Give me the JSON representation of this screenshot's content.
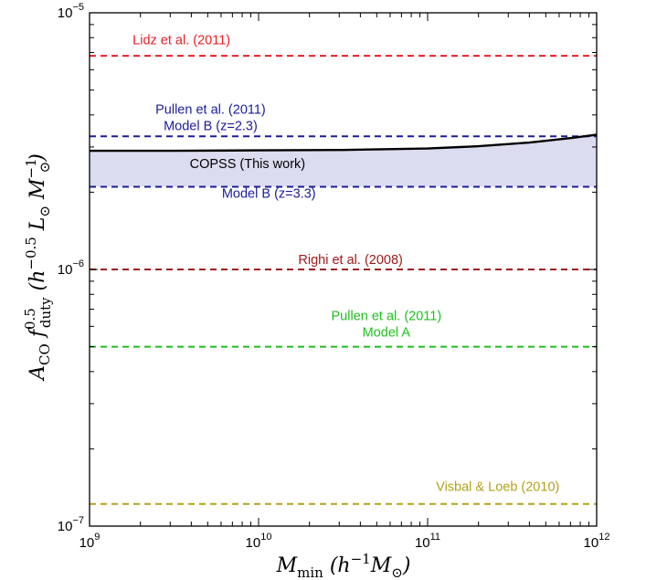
{
  "chart_data": {
    "type": "line",
    "x_scale": "log",
    "y_scale": "log",
    "xlim": [
      1000000000.0,
      1000000000000.0
    ],
    "ylim": [
      1e-07,
      1e-05
    ],
    "xlabel": {
      "main": "M",
      "sub": "min",
      "units": "(h",
      "units_exp": "−1",
      "units_rest": "M",
      "units_sub": "⊙",
      "units_close": ")"
    },
    "ylabel": {
      "main": "A",
      "sub1": "CO",
      "f": " f",
      "f_sup": "0.5",
      "f_sub": "duty",
      "units": "(h",
      "units_exp": "−0.5",
      "units_L": " L",
      "units_L_sub": "⊙",
      "units_M": " M",
      "units_M_sup": "−1",
      "units_M_sub": "⊙",
      "units_close": ")"
    },
    "x_ticks": [
      {
        "value": 1000000000.0,
        "base": "10",
        "exp": "9"
      },
      {
        "value": 10000000000.0,
        "base": "10",
        "exp": "10"
      },
      {
        "value": 100000000000.0,
        "base": "10",
        "exp": "11"
      },
      {
        "value": 1000000000000.0,
        "base": "10",
        "exp": "12"
      }
    ],
    "y_ticks": [
      {
        "value": 1e-07,
        "base": "10",
        "exp": "−7"
      },
      {
        "value": 1e-06,
        "base": "10",
        "exp": "−6"
      },
      {
        "value": 1e-05,
        "base": "10",
        "exp": "−5"
      }
    ],
    "hlines": [
      {
        "name": "Lidz et al. (2011)",
        "y": 6.8e-06,
        "color": "#ee1c24"
      },
      {
        "name": "Pullen et al. (2011) Model B (z=2.3)",
        "y": 3.3e-06,
        "color": "#1c1c9c"
      },
      {
        "name": "Model B (z=3.3)",
        "y": 2.1e-06,
        "color": "#1c1c9c"
      },
      {
        "name": "Righi et al. (2008)",
        "y": 1e-06,
        "color": "#a01a1a"
      },
      {
        "name": "Pullen et al. (2011) Model A",
        "y": 5e-07,
        "color": "#1fbf1f"
      },
      {
        "name": "Visbal & Loeb (2010)",
        "y": 1.22e-07,
        "color": "#b3a21a"
      }
    ],
    "copss_curve": {
      "name": "COPSS (This work)",
      "color": "#000000",
      "x": [
        1000000000.0,
        3160000000.0,
        10000000000.0,
        31600000000.0,
        100000000000.0,
        200000000000.0,
        400000000000.0,
        700000000000.0,
        1000000000000.0
      ],
      "y": [
        2.9e-06,
        2.9e-06,
        2.91e-06,
        2.92e-06,
        2.96e-06,
        3.02e-06,
        3.12e-06,
        3.25e-06,
        3.35e-06
      ]
    },
    "copss_band": {
      "lower": 2.1e-06,
      "fill": "#dcdcf0"
    },
    "annotations": [
      {
        "lines": [
          "Lidz et al. (2011)"
        ],
        "x": 3500000000.0,
        "y": 7.55e-06,
        "color": "#ee1c24",
        "anchor": "middle"
      },
      {
        "lines": [
          "Pullen et al. (2011)",
          "Model B (z=2.3)"
        ],
        "x": 5200000000.0,
        "y": 4.05e-06,
        "color": "#1c1c9c",
        "anchor": "middle"
      },
      {
        "lines": [
          "COPSS (This work)"
        ],
        "x": 8600000000.0,
        "y": 2.48e-06,
        "color": "#000000",
        "anchor": "middle"
      },
      {
        "lines": [
          "Model B (z=3.3)"
        ],
        "x": 11500000000.0,
        "y": 1.9e-06,
        "color": "#1c1c9c",
        "anchor": "middle"
      },
      {
        "lines": [
          "Righi et al. (2008)"
        ],
        "x": 35000000000.0,
        "y": 1.05e-06,
        "color": "#a01a1a",
        "anchor": "middle"
      },
      {
        "lines": [
          "Pullen et al. (2011)",
          "Model A"
        ],
        "x": 57000000000.0,
        "y": 6.35e-07,
        "color": "#1fbf1f",
        "anchor": "middle"
      },
      {
        "lines": [
          "Visbal & Loeb (2010)"
        ],
        "x": 260000000000.0,
        "y": 1.37e-07,
        "color": "#b3a21a",
        "anchor": "middle"
      }
    ]
  }
}
